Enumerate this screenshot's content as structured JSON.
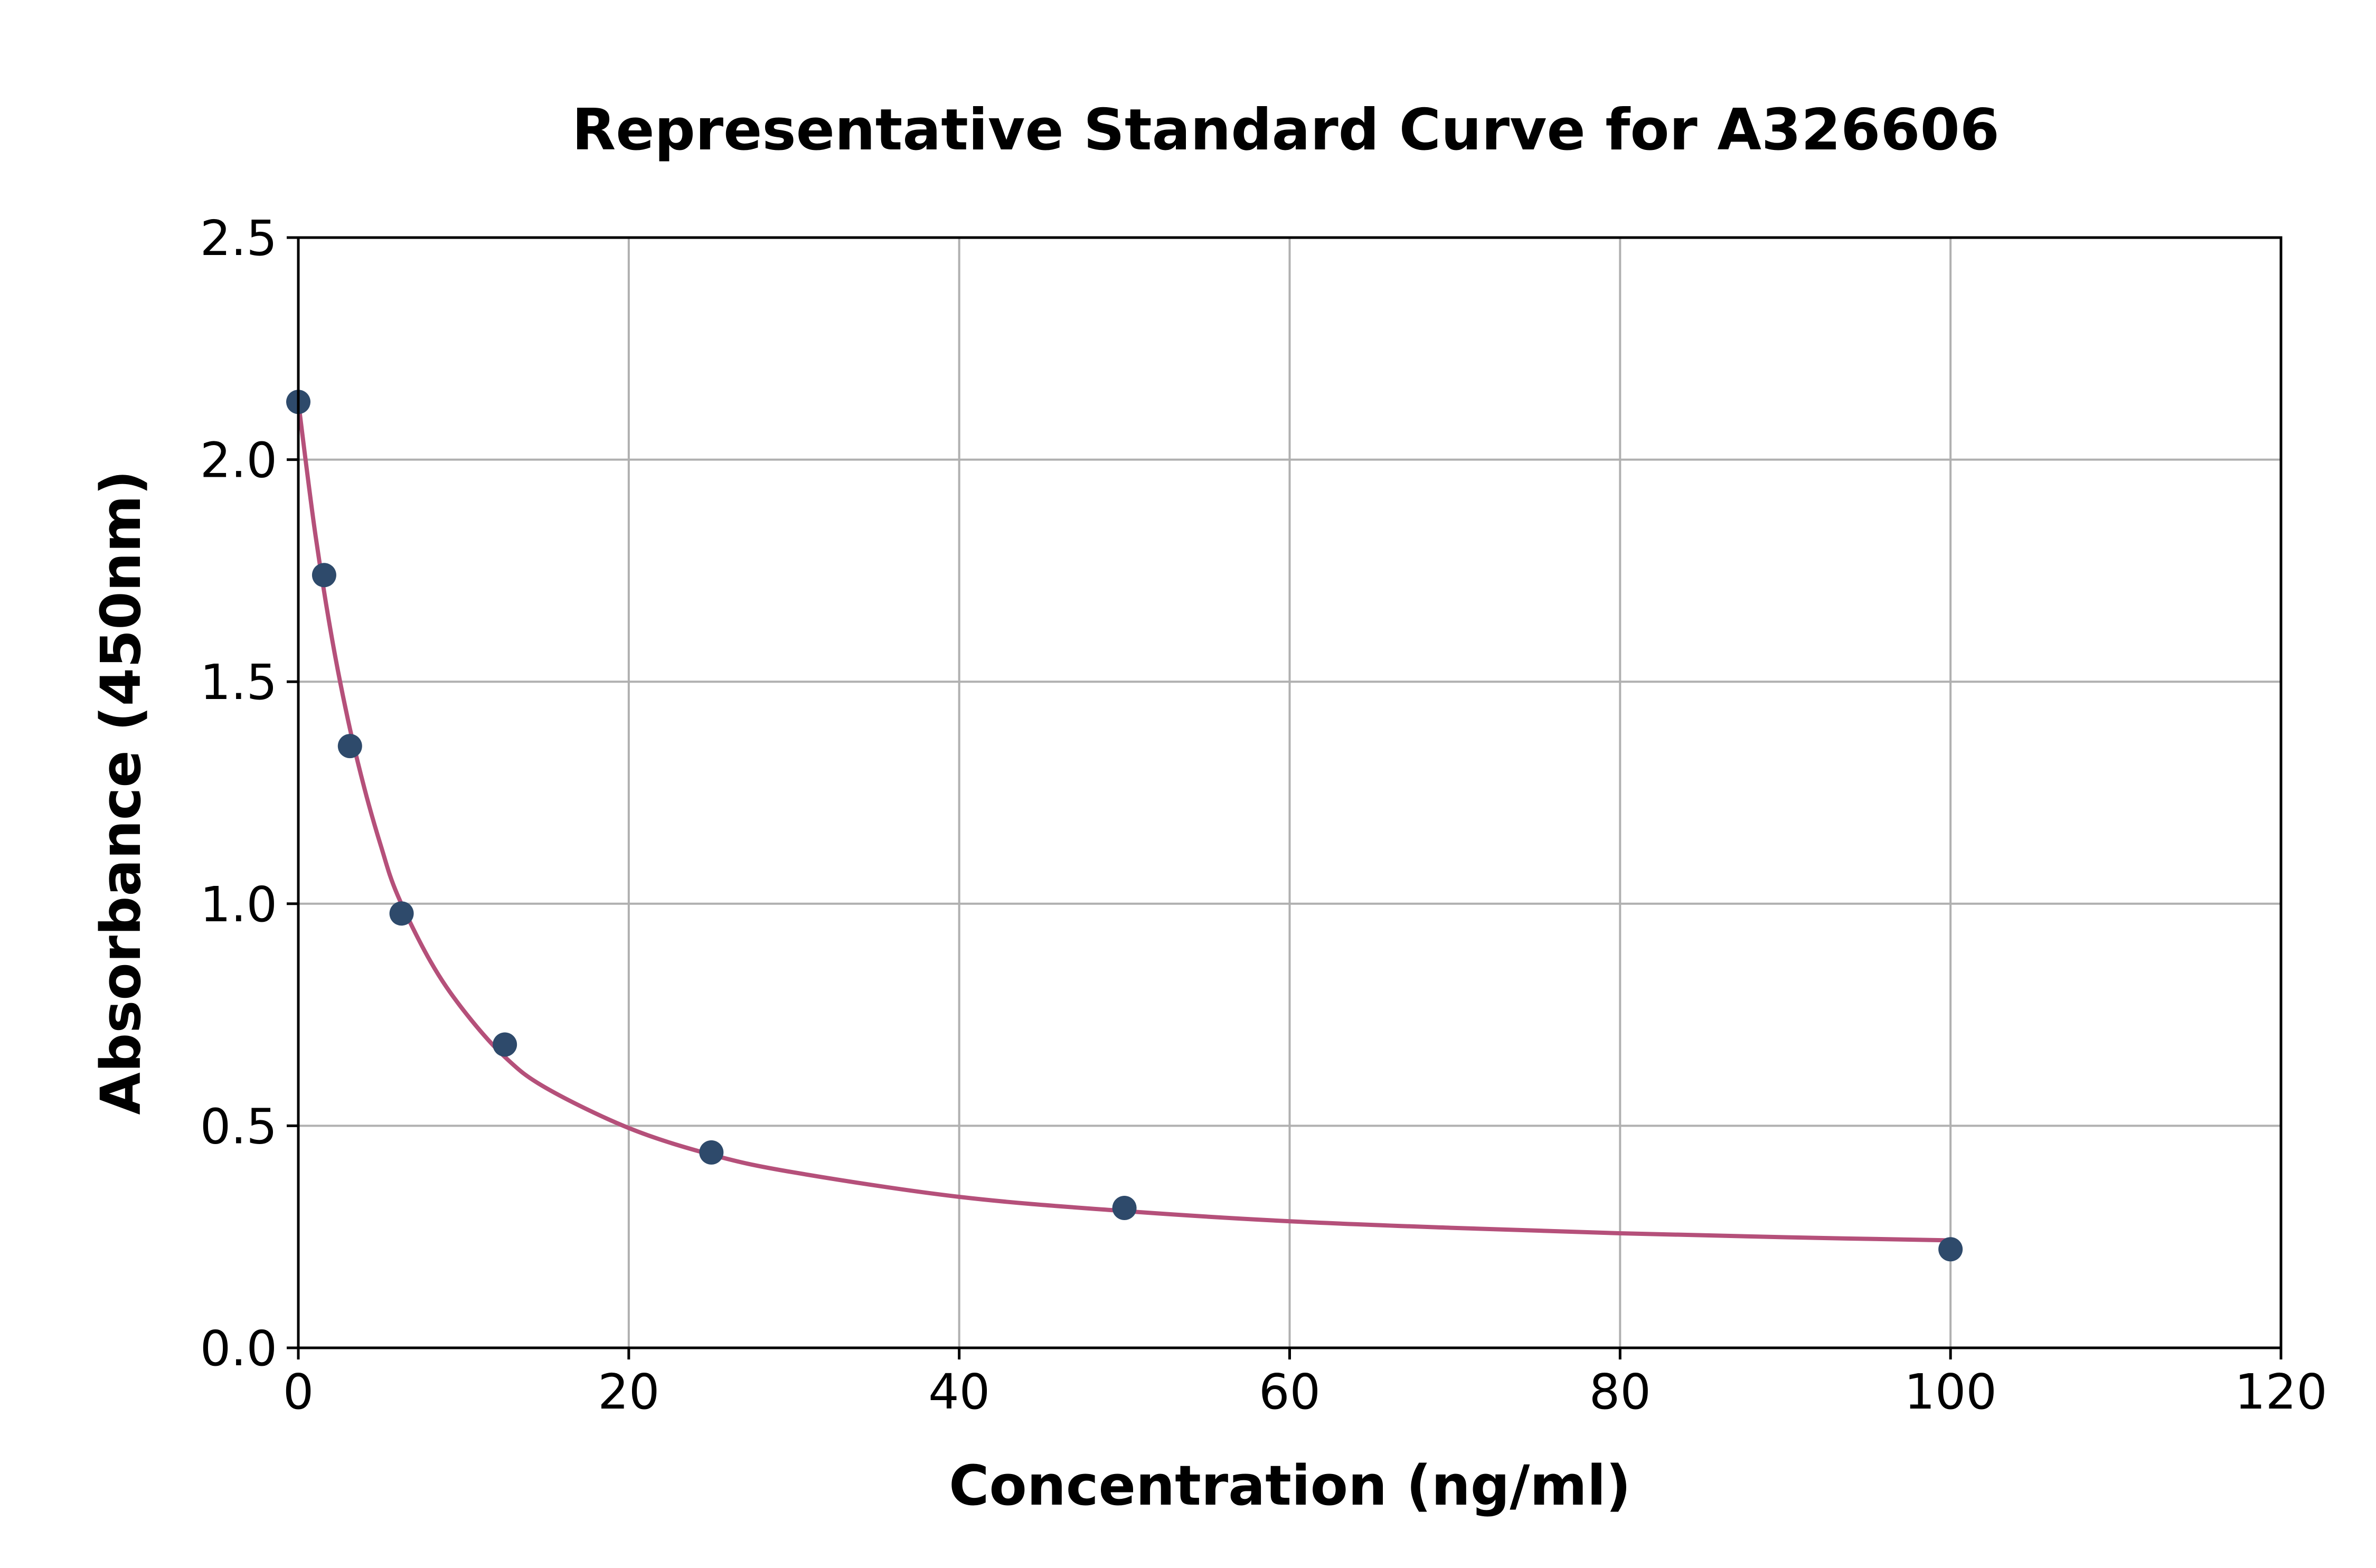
{
  "chart_data": {
    "type": "scatter",
    "title": "Representative Standard Curve for A326606",
    "xlabel": "Concentration (ng/ml)",
    "ylabel": "Absorbance (450nm)",
    "xlim": [
      0,
      120
    ],
    "ylim": [
      0,
      2.5
    ],
    "x_ticks": [
      "0",
      "20",
      "40",
      "60",
      "80",
      "100",
      "120"
    ],
    "y_ticks": [
      "0.0",
      "0.5",
      "1.0",
      "1.5",
      "2.0",
      "2.5"
    ],
    "grid": true,
    "series": [
      {
        "kind": "points",
        "color": "#2e4a6b",
        "x": [
          0,
          1.563,
          3.125,
          6.25,
          12.5,
          25,
          50,
          100
        ],
        "y": [
          2.13,
          1.74,
          1.355,
          0.978,
          0.683,
          0.44,
          0.315,
          0.222
        ]
      },
      {
        "kind": "fit-curve",
        "color": "#b5507a",
        "x": [
          0,
          1,
          2,
          3,
          4,
          5,
          6,
          8,
          10,
          12.5,
          15,
          20,
          25,
          30,
          40,
          50,
          60,
          70,
          80,
          90,
          100
        ],
        "y": [
          2.13,
          1.84,
          1.605,
          1.415,
          1.26,
          1.13,
          1.02,
          0.87,
          0.76,
          0.655,
          0.585,
          0.495,
          0.435,
          0.395,
          0.34,
          0.308,
          0.285,
          0.27,
          0.258,
          0.249,
          0.242
        ]
      }
    ]
  }
}
